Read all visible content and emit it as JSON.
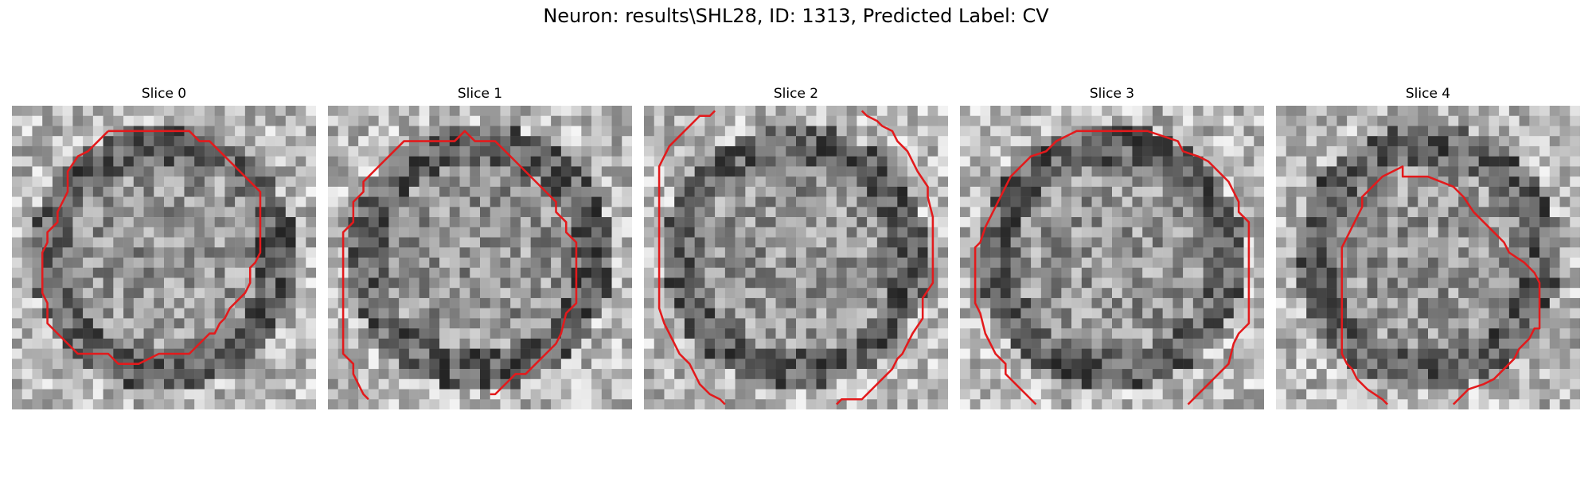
{
  "figure": {
    "title": "Neuron: results\\SHL28, ID: 1313, Predicted Label: CV"
  },
  "panels": [
    {
      "title": "Slice 0",
      "seed": 11,
      "contour": [
        [
          9.5,
          2.5
        ],
        [
          17.5,
          2.5
        ],
        [
          18.5,
          3.5
        ],
        [
          19.5,
          3.5
        ],
        [
          21.5,
          5.5
        ],
        [
          22.5,
          6.5
        ],
        [
          23.5,
          7.5
        ],
        [
          24.5,
          8.5
        ],
        [
          24.5,
          9.5
        ],
        [
          24.5,
          10.5
        ],
        [
          24.5,
          11.5
        ],
        [
          24.5,
          12.5
        ],
        [
          24.5,
          13.5
        ],
        [
          24.5,
          14.5
        ],
        [
          24.0,
          15.5
        ],
        [
          23.5,
          16.0
        ],
        [
          23.5,
          16.5
        ],
        [
          23.5,
          17.5
        ],
        [
          23.0,
          18.5
        ],
        [
          22.5,
          19.0
        ],
        [
          21.5,
          20.0
        ],
        [
          21.0,
          21.0
        ],
        [
          20.5,
          21.5
        ],
        [
          20.0,
          22.5
        ],
        [
          19.5,
          22.5
        ],
        [
          18.5,
          23.5
        ],
        [
          17.5,
          24.5
        ],
        [
          14.5,
          24.5
        ],
        [
          13.5,
          25.0
        ],
        [
          12.5,
          25.5
        ],
        [
          10.5,
          25.5
        ],
        [
          9.5,
          24.5
        ],
        [
          6.5,
          24.5
        ],
        [
          5.5,
          23.5
        ],
        [
          4.5,
          22.5
        ],
        [
          3.5,
          21.5
        ],
        [
          3.5,
          19.5
        ],
        [
          3.0,
          18.5
        ],
        [
          3.0,
          14.5
        ],
        [
          3.5,
          13.5
        ],
        [
          3.5,
          12.5
        ],
        [
          4.5,
          11.5
        ],
        [
          4.5,
          10.5
        ],
        [
          5.0,
          9.5
        ],
        [
          5.5,
          8.5
        ],
        [
          5.5,
          6.5
        ],
        [
          6.5,
          5.0
        ],
        [
          7.5,
          4.5
        ],
        [
          8.5,
          3.5
        ],
        [
          9.5,
          2.5
        ]
      ]
    },
    {
      "title": "Slice 1",
      "seed": 23,
      "contour": [
        [
          9.5,
          3.5
        ],
        [
          12.5,
          3.5
        ],
        [
          13.5,
          2.5
        ],
        [
          14.5,
          3.5
        ],
        [
          16.5,
          3.5
        ],
        [
          17.5,
          4.5
        ],
        [
          18.5,
          5.5
        ],
        [
          19.5,
          6.5
        ],
        [
          20.5,
          7.5
        ],
        [
          21.5,
          8.5
        ],
        [
          22.5,
          9.5
        ],
        [
          22.5,
          10.5
        ],
        [
          23.5,
          11.5
        ],
        [
          23.5,
          12.5
        ],
        [
          24.5,
          13.5
        ],
        [
          24.5,
          14.5
        ],
        [
          24.5,
          17.5
        ],
        [
          24.5,
          19.5
        ],
        [
          23.5,
          20.5
        ],
        [
          23.0,
          22.5
        ],
        [
          22.5,
          23.5
        ],
        [
          21.5,
          24.5
        ],
        [
          20.5,
          25.5
        ],
        [
          19.5,
          26.5
        ],
        [
          18.5,
          26.5
        ],
        [
          17.5,
          27.5
        ],
        [
          16.5,
          28.5
        ],
        [
          16.0,
          28.5
        ]
      ],
      "contour2": [
        [
          4.0,
          29.0
        ],
        [
          3.5,
          28.5
        ],
        [
          3.0,
          27.5
        ],
        [
          2.5,
          26.5
        ],
        [
          2.5,
          25.5
        ],
        [
          1.5,
          24.5
        ],
        [
          1.5,
          20.5
        ],
        [
          1.5,
          12.5
        ],
        [
          2.5,
          11.5
        ],
        [
          2.5,
          9.5
        ],
        [
          3.5,
          8.5
        ],
        [
          3.5,
          7.5
        ],
        [
          4.5,
          6.5
        ],
        [
          5.5,
          5.5
        ],
        [
          6.5,
          4.5
        ],
        [
          7.5,
          3.5
        ],
        [
          9.5,
          3.5
        ]
      ]
    },
    {
      "title": "Slice 2",
      "seed": 37,
      "contour": [
        [
          7.0,
          0.5
        ],
        [
          6.5,
          1.0
        ],
        [
          5.5,
          1.0
        ],
        [
          4.5,
          2.0
        ],
        [
          3.5,
          3.0
        ],
        [
          2.5,
          4.0
        ],
        [
          2.0,
          5.0
        ],
        [
          1.5,
          6.0
        ],
        [
          1.5,
          7.0
        ],
        [
          1.5,
          8.5
        ],
        [
          1.5,
          11.5
        ],
        [
          1.5,
          16.5
        ],
        [
          1.5,
          20.0
        ],
        [
          2.0,
          21.5
        ],
        [
          2.5,
          22.5
        ],
        [
          3.0,
          23.5
        ],
        [
          3.5,
          24.5
        ],
        [
          4.5,
          25.5
        ],
        [
          5.0,
          26.5
        ],
        [
          5.5,
          27.5
        ],
        [
          6.5,
          28.5
        ],
        [
          7.5,
          29.0
        ],
        [
          8.0,
          29.5
        ]
      ],
      "contour2": [
        [
          19.0,
          29.5
        ],
        [
          19.5,
          29.0
        ],
        [
          21.5,
          29.0
        ],
        [
          22.5,
          28.0
        ],
        [
          23.5,
          27.0
        ],
        [
          24.5,
          26.0
        ],
        [
          25.0,
          25.0
        ],
        [
          25.5,
          24.5
        ],
        [
          26.0,
          23.5
        ],
        [
          26.5,
          22.5
        ],
        [
          27.5,
          21.0
        ],
        [
          27.5,
          19.0
        ],
        [
          28.5,
          17.5
        ],
        [
          28.5,
          13.0
        ],
        [
          28.5,
          11.0
        ],
        [
          28.0,
          9.0
        ],
        [
          28.0,
          8.0
        ],
        [
          27.0,
          6.5
        ],
        [
          26.5,
          5.5
        ],
        [
          26.0,
          4.5
        ],
        [
          25.0,
          3.5
        ],
        [
          24.5,
          2.5
        ],
        [
          23.5,
          2.0
        ],
        [
          23.0,
          1.5
        ],
        [
          22.0,
          1.0
        ],
        [
          21.5,
          0.5
        ]
      ]
    },
    {
      "title": "Slice 3",
      "seed": 41,
      "contour": [
        [
          7.5,
          29.5
        ],
        [
          6.5,
          28.5
        ],
        [
          5.5,
          27.5
        ],
        [
          4.5,
          26.5
        ],
        [
          4.5,
          25.5
        ],
        [
          3.5,
          24.5
        ],
        [
          3.0,
          23.5
        ],
        [
          2.5,
          22.5
        ],
        [
          2.0,
          20.5
        ],
        [
          1.5,
          19.5
        ],
        [
          1.5,
          17.5
        ],
        [
          1.5,
          14.0
        ],
        [
          2.0,
          13.5
        ],
        [
          2.5,
          12.0
        ],
        [
          3.0,
          11.0
        ],
        [
          3.5,
          10.0
        ],
        [
          4.0,
          9.0
        ],
        [
          4.5,
          8.0
        ],
        [
          5.0,
          7.0
        ],
        [
          6.0,
          6.0
        ],
        [
          7.0,
          5.0
        ],
        [
          8.5,
          4.5
        ],
        [
          9.5,
          3.5
        ],
        [
          11.5,
          2.5
        ],
        [
          13.5,
          2.5
        ],
        [
          18.5,
          2.5
        ],
        [
          21.5,
          3.5
        ],
        [
          22.0,
          4.5
        ],
        [
          23.5,
          5.0
        ],
        [
          24.5,
          5.5
        ],
        [
          25.5,
          6.5
        ],
        [
          26.5,
          7.5
        ],
        [
          27.0,
          8.5
        ],
        [
          27.5,
          9.5
        ],
        [
          27.5,
          10.5
        ],
        [
          28.5,
          11.5
        ],
        [
          28.5,
          13.0
        ],
        [
          28.5,
          16.5
        ],
        [
          28.5,
          19.0
        ],
        [
          28.5,
          21.5
        ],
        [
          27.5,
          22.5
        ],
        [
          27.0,
          23.5
        ],
        [
          26.5,
          25.5
        ],
        [
          25.5,
          26.5
        ],
        [
          24.5,
          27.5
        ],
        [
          23.5,
          28.5
        ],
        [
          23.0,
          29.0
        ],
        [
          22.5,
          29.5
        ]
      ]
    },
    {
      "title": "Slice 4",
      "seed": 53,
      "contour": [
        [
          11.0,
          29.5
        ],
        [
          10.5,
          29.0
        ],
        [
          9.0,
          28.0
        ],
        [
          8.0,
          27.0
        ],
        [
          7.5,
          26.0
        ],
        [
          7.0,
          25.5
        ],
        [
          6.5,
          24.5
        ],
        [
          6.5,
          21.5
        ],
        [
          6.5,
          20.5
        ],
        [
          6.5,
          16.5
        ],
        [
          6.5,
          14.0
        ],
        [
          7.0,
          13.0
        ],
        [
          7.5,
          12.0
        ],
        [
          8.0,
          11.0
        ],
        [
          8.5,
          10.0
        ],
        [
          8.5,
          9.0
        ],
        [
          9.5,
          8.0
        ],
        [
          10.5,
          7.0
        ],
        [
          11.5,
          6.5
        ],
        [
          12.5,
          6.0
        ],
        [
          12.5,
          7.0
        ],
        [
          15.0,
          7.0
        ],
        [
          17.5,
          8.0
        ],
        [
          18.5,
          9.0
        ],
        [
          19.5,
          10.5
        ],
        [
          20.5,
          11.5
        ],
        [
          21.5,
          12.5
        ],
        [
          22.5,
          13.5
        ],
        [
          23.0,
          14.5
        ],
        [
          24.5,
          15.5
        ],
        [
          25.5,
          16.5
        ],
        [
          26.0,
          17.5
        ],
        [
          26.0,
          21.5
        ],
        [
          26.0,
          22.0
        ],
        [
          25.5,
          22.0
        ],
        [
          25.0,
          23.0
        ],
        [
          24.0,
          24.0
        ],
        [
          23.5,
          25.0
        ],
        [
          22.5,
          26.0
        ],
        [
          21.5,
          27.0
        ],
        [
          20.5,
          27.5
        ],
        [
          19.0,
          28.0
        ],
        [
          18.0,
          29.0
        ],
        [
          17.5,
          29.5
        ]
      ]
    }
  ]
}
